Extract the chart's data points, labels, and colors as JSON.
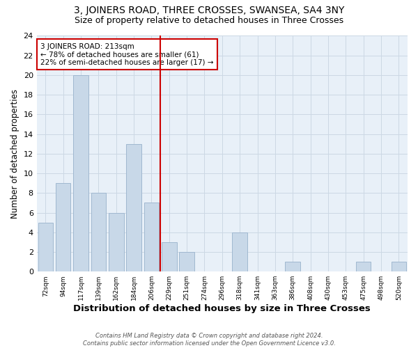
{
  "title": "3, JOINERS ROAD, THREE CROSSES, SWANSEA, SA4 3NY",
  "subtitle": "Size of property relative to detached houses in Three Crosses",
  "xlabel": "Distribution of detached houses by size in Three Crosses",
  "ylabel": "Number of detached properties",
  "bin_labels": [
    "72sqm",
    "94sqm",
    "117sqm",
    "139sqm",
    "162sqm",
    "184sqm",
    "206sqm",
    "229sqm",
    "251sqm",
    "274sqm",
    "296sqm",
    "318sqm",
    "341sqm",
    "363sqm",
    "386sqm",
    "408sqm",
    "430sqm",
    "453sqm",
    "475sqm",
    "498sqm",
    "520sqm"
  ],
  "bar_values": [
    5,
    9,
    20,
    8,
    6,
    13,
    7,
    3,
    2,
    0,
    0,
    4,
    0,
    0,
    1,
    0,
    0,
    0,
    1,
    0,
    1
  ],
  "bar_color": "#c8d8e8",
  "bar_edge_color": "#a0b8d0",
  "vline_x_index": 6,
  "vline_color": "#cc0000",
  "annotation_line1": "3 JOINERS ROAD: 213sqm",
  "annotation_line2": "← 78% of detached houses are smaller (61)",
  "annotation_line3": "22% of semi-detached houses are larger (17) →",
  "annotation_box_color": "#cc0000",
  "annotation_text_fontsize": 7.5,
  "ylim": [
    0,
    24
  ],
  "yticks": [
    0,
    2,
    4,
    6,
    8,
    10,
    12,
    14,
    16,
    18,
    20,
    22,
    24
  ],
  "grid_color": "#ccd8e4",
  "background_color": "#e8f0f8",
  "footer_text": "Contains HM Land Registry data © Crown copyright and database right 2024.\nContains public sector information licensed under the Open Government Licence v3.0.",
  "title_fontsize": 10,
  "subtitle_fontsize": 9,
  "xlabel_fontsize": 9.5,
  "ylabel_fontsize": 8.5
}
